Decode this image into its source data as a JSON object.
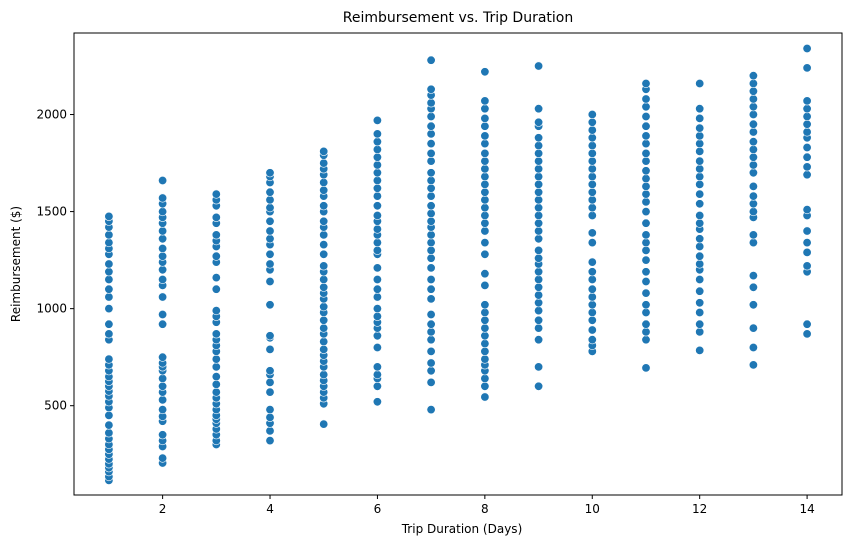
{
  "chart_data": {
    "type": "scatter",
    "title": "Reimbursement vs. Trip Duration",
    "xlabel": "Trip Duration (Days)",
    "ylabel": "Reimbursement ($)",
    "xlim": [
      0.35,
      14.65
    ],
    "ylim": [
      40,
      2420
    ],
    "xticks": [
      2,
      4,
      6,
      8,
      10,
      12,
      14
    ],
    "xtick_labels": [
      "2",
      "4",
      "6",
      "8",
      "10",
      "12",
      "14"
    ],
    "yticks": [
      500,
      1000,
      1500,
      2000
    ],
    "ytick_labels": [
      "500",
      "1000",
      "1500",
      "2000"
    ],
    "grid": false,
    "legend": "none",
    "marker_color": "#1f77b4",
    "series": [
      {
        "values_by_duration": [
          {
            "x": 1,
            "y": [
              115,
              135,
              160,
              180,
              200,
              225,
              250,
              275,
              300,
              330,
              360,
              400,
              450,
              490,
              520,
              550,
              575,
              600,
              625,
              650,
              680,
              710,
              740,
              840,
              870,
              920,
              1000,
              1060,
              1100,
              1150,
              1190,
              1230,
              1280,
              1310,
              1340,
              1380,
              1420,
              1450,
              1475
            ]
          },
          {
            "x": 2,
            "y": [
              205,
              230,
              290,
              320,
              350,
              420,
              445,
              480,
              530,
              570,
              600,
              640,
              680,
              700,
              720,
              750,
              920,
              970,
              1060,
              1120,
              1150,
              1200,
              1240,
              1270,
              1310,
              1360,
              1400,
              1440,
              1470,
              1500,
              1540,
              1570,
              1660
            ]
          },
          {
            "x": 3,
            "y": [
              300,
              320,
              350,
              380,
              410,
              430,
              450,
              480,
              510,
              540,
              570,
              610,
              650,
              700,
              740,
              780,
              810,
              840,
              870,
              930,
              960,
              990,
              1100,
              1160,
              1240,
              1270,
              1320,
              1350,
              1380,
              1440,
              1470,
              1530,
              1560,
              1590
            ]
          },
          {
            "x": 4,
            "y": [
              320,
              370,
              410,
              440,
              480,
              570,
              620,
              660,
              680,
              790,
              850,
              860,
              1020,
              1140,
              1200,
              1230,
              1280,
              1330,
              1360,
              1400,
              1450,
              1500,
              1520,
              1560,
              1600,
              1650,
              1680,
              1700
            ]
          },
          {
            "x": 5,
            "y": [
              405,
              510,
              540,
              570,
              600,
              630,
              660,
              700,
              730,
              760,
              790,
              830,
              870,
              900,
              940,
              980,
              1010,
              1050,
              1080,
              1110,
              1150,
              1190,
              1220,
              1280,
              1330,
              1380,
              1420,
              1450,
              1500,
              1530,
              1580,
              1610,
              1650,
              1690,
              1720,
              1750,
              1790,
              1810
            ]
          },
          {
            "x": 6,
            "y": [
              520,
              600,
              640,
              660,
              700,
              800,
              860,
              900,
              930,
              960,
              1000,
              1060,
              1100,
              1150,
              1210,
              1280,
              1300,
              1340,
              1380,
              1410,
              1450,
              1480,
              1530,
              1580,
              1620,
              1660,
              1700,
              1740,
              1780,
              1820,
              1860,
              1900,
              1970
            ]
          },
          {
            "x": 7,
            "y": [
              480,
              620,
              680,
              720,
              780,
              840,
              880,
              920,
              970,
              1050,
              1100,
              1150,
              1210,
              1260,
              1300,
              1340,
              1380,
              1420,
              1450,
              1490,
              1530,
              1580,
              1620,
              1660,
              1700,
              1760,
              1800,
              1850,
              1900,
              1940,
              1990,
              2030,
              2060,
              2100,
              2130,
              2280
            ]
          },
          {
            "x": 8,
            "y": [
              545,
              600,
              640,
              680,
              710,
              740,
              780,
              820,
              860,
              900,
              940,
              980,
              1020,
              1120,
              1180,
              1280,
              1340,
              1400,
              1440,
              1480,
              1520,
              1560,
              1600,
              1640,
              1680,
              1720,
              1760,
              1800,
              1850,
              1890,
              1940,
              1980,
              2030,
              2070,
              2220
            ]
          },
          {
            "x": 9,
            "y": [
              600,
              700,
              840,
              900,
              940,
              990,
              1030,
              1070,
              1110,
              1150,
              1190,
              1230,
              1260,
              1300,
              1360,
              1400,
              1440,
              1480,
              1520,
              1560,
              1600,
              1640,
              1680,
              1720,
              1760,
              1800,
              1840,
              1880,
              1940,
              1960,
              2030,
              2250
            ]
          },
          {
            "x": 10,
            "y": [
              780,
              810,
              840,
              890,
              940,
              980,
              1020,
              1060,
              1100,
              1150,
              1190,
              1240,
              1340,
              1390,
              1480,
              1520,
              1560,
              1600,
              1640,
              1680,
              1720,
              1760,
              1800,
              1840,
              1880,
              1920,
              1960,
              2000
            ]
          },
          {
            "x": 11,
            "y": [
              695,
              840,
              880,
              920,
              980,
              1020,
              1080,
              1140,
              1190,
              1250,
              1300,
              1340,
              1380,
              1440,
              1500,
              1550,
              1590,
              1630,
              1670,
              1710,
              1760,
              1800,
              1850,
              1890,
              1940,
              1990,
              2040,
              2080,
              2130,
              2160
            ]
          },
          {
            "x": 12,
            "y": [
              785,
              880,
              920,
              980,
              1030,
              1090,
              1150,
              1200,
              1230,
              1270,
              1320,
              1360,
              1410,
              1440,
              1480,
              1540,
              1590,
              1640,
              1680,
              1720,
              1760,
              1810,
              1850,
              1890,
              1930,
              1980,
              2030,
              2160
            ]
          },
          {
            "x": 13,
            "y": [
              710,
              800,
              900,
              1020,
              1110,
              1170,
              1340,
              1380,
              1470,
              1500,
              1540,
              1580,
              1630,
              1700,
              1740,
              1780,
              1820,
              1860,
              1910,
              1950,
              2000,
              2040,
              2080,
              2120,
              2160,
              2200
            ]
          },
          {
            "x": 14,
            "y": [
              870,
              920,
              1190,
              1220,
              1290,
              1340,
              1400,
              1480,
              1510,
              1690,
              1730,
              1780,
              1830,
              1880,
              1910,
              1950,
              1990,
              2030,
              2070,
              2240,
              2340
            ]
          }
        ]
      }
    ]
  }
}
